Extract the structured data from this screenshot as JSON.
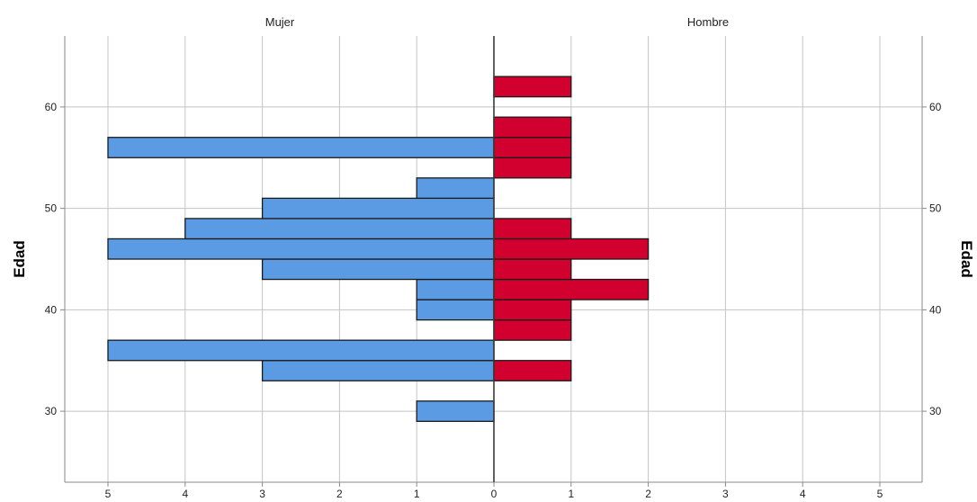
{
  "chart_data": {
    "type": "bar",
    "orientation": "horizontal",
    "subtype": "population-pyramid",
    "ylabel": "Edad",
    "y_ticks": [
      30,
      40,
      50,
      60
    ],
    "ylim": [
      23,
      67
    ],
    "x_ticks": [
      5,
      4,
      3,
      2,
      1,
      0,
      1,
      2,
      3,
      4,
      5
    ],
    "xlim": [
      0,
      5
    ],
    "grid": true,
    "bin_width": 2,
    "series": [
      {
        "name": "Mujer",
        "side": "left",
        "color": "#5B9BE3",
        "bins": [
          {
            "edad": 30,
            "count": 1
          },
          {
            "edad": 34,
            "count": 3
          },
          {
            "edad": 36,
            "count": 5
          },
          {
            "edad": 40,
            "count": 1
          },
          {
            "edad": 42,
            "count": 1
          },
          {
            "edad": 44,
            "count": 3
          },
          {
            "edad": 46,
            "count": 5
          },
          {
            "edad": 48,
            "count": 4
          },
          {
            "edad": 50,
            "count": 3
          },
          {
            "edad": 52,
            "count": 1
          },
          {
            "edad": 56,
            "count": 5
          }
        ]
      },
      {
        "name": "Hombre",
        "side": "right",
        "color": "#D2002E",
        "bins": [
          {
            "edad": 34,
            "count": 1
          },
          {
            "edad": 38,
            "count": 1
          },
          {
            "edad": 40,
            "count": 1
          },
          {
            "edad": 42,
            "count": 2
          },
          {
            "edad": 44,
            "count": 1
          },
          {
            "edad": 46,
            "count": 2
          },
          {
            "edad": 48,
            "count": 1
          },
          {
            "edad": 54,
            "count": 1
          },
          {
            "edad": 56,
            "count": 1
          },
          {
            "edad": 58,
            "count": 1
          },
          {
            "edad": 62,
            "count": 1
          }
        ]
      }
    ]
  }
}
